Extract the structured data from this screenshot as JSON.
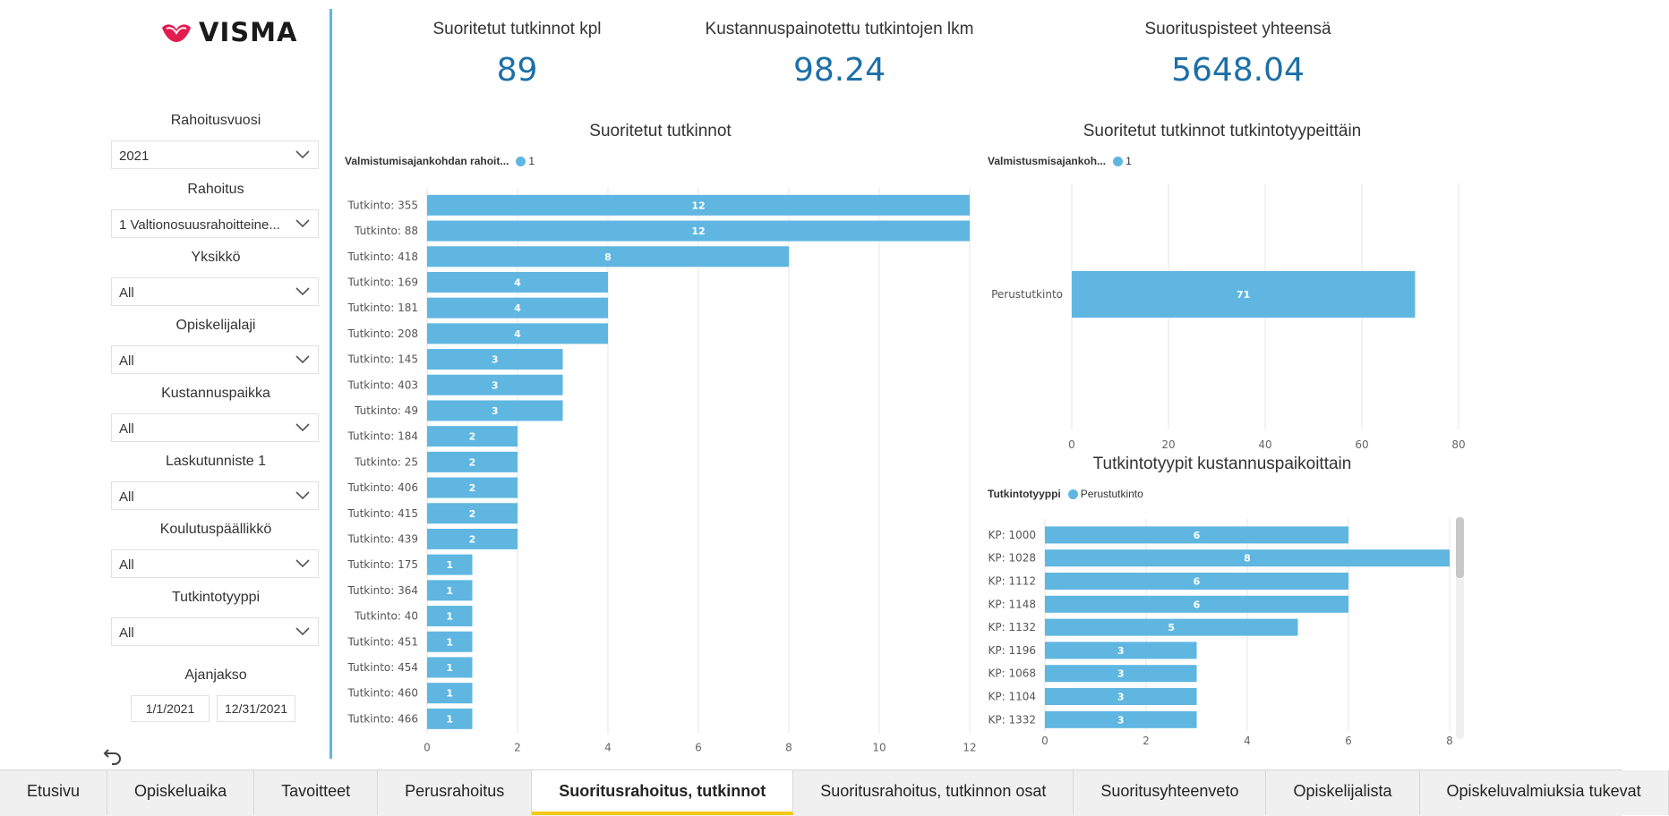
{
  "sidebar": {
    "logo_text": "VISMA",
    "slicers": [
      {
        "title": "Rahoitusvuosi",
        "value": "2021"
      },
      {
        "title": "Rahoitus",
        "value": "1 Valtionosuusrahoitteine..."
      },
      {
        "title": "Yksikkö",
        "value": "All"
      },
      {
        "title": "Opiskelijalaji",
        "value": "All"
      },
      {
        "title": "Kustannuspaikka",
        "value": "All"
      },
      {
        "title": "Laskutunniste 1",
        "value": "All"
      },
      {
        "title": "Koulutuspäällikkö",
        "value": "All"
      },
      {
        "title": "Tutkintotyyppi",
        "value": "All"
      }
    ],
    "period": {
      "title": "Ajanjakso",
      "start": "1/1/2021",
      "end": "12/31/2021"
    }
  },
  "kpis": [
    {
      "title": "Suoritetut tutkinnot kpl",
      "value": "89"
    },
    {
      "title": "Kustannuspainotettu tutkintojen lkm",
      "value": "98.24"
    },
    {
      "title": "Suorituspisteet yhteensä",
      "value": "5648.04"
    }
  ],
  "colors": {
    "bar": "#5fb6e1",
    "kpi": "#1c6fa8",
    "accent_tab": "#f2c811"
  },
  "chart_data": [
    {
      "type": "bar",
      "orientation": "horizontal",
      "title": "Suoritetut tutkinnot",
      "legend_title": "Valmistumisajankohdan rahoit...",
      "legend_item": "1",
      "categories": [
        "Tutkinto: 355",
        "Tutkinto: 88",
        "Tutkinto: 418",
        "Tutkinto: 169",
        "Tutkinto: 181",
        "Tutkinto: 208",
        "Tutkinto: 145",
        "Tutkinto: 403",
        "Tutkinto: 49",
        "Tutkinto: 184",
        "Tutkinto: 25",
        "Tutkinto: 406",
        "Tutkinto: 415",
        "Tutkinto: 439",
        "Tutkinto: 175",
        "Tutkinto: 364",
        "Tutkinto: 40",
        "Tutkinto: 451",
        "Tutkinto: 454",
        "Tutkinto: 460",
        "Tutkinto: 466"
      ],
      "values": [
        12,
        12,
        8,
        4,
        4,
        4,
        3,
        3,
        3,
        2,
        2,
        2,
        2,
        2,
        1,
        1,
        1,
        1,
        1,
        1,
        1
      ],
      "xlim": [
        0,
        12
      ],
      "xticks": [
        0,
        2,
        4,
        6,
        8,
        10,
        12
      ],
      "grid": true
    },
    {
      "type": "bar",
      "orientation": "horizontal",
      "title": "Suoritetut tutkinnot tutkintotyypeittäin",
      "legend_title": "Valmistusmisajankoh...",
      "legend_item": "1",
      "categories": [
        "Perustutkinto"
      ],
      "values": [
        71
      ],
      "xlim": [
        0,
        80
      ],
      "xticks": [
        0,
        20,
        40,
        60,
        80
      ],
      "grid": true
    },
    {
      "type": "bar",
      "orientation": "horizontal",
      "title": "Tutkintotyypit kustannuspaikoittain",
      "legend_title": "Tutkintotyyppi",
      "legend_item": "Perustutkinto",
      "categories": [
        "KP: 1000",
        "KP: 1028",
        "KP: 1112",
        "KP: 1148",
        "KP: 1132",
        "KP: 1196",
        "KP: 1068",
        "KP: 1104",
        "KP: 1332"
      ],
      "values": [
        6,
        8,
        6,
        6,
        5,
        3,
        3,
        3,
        3
      ],
      "xlim": [
        0,
        8
      ],
      "xticks": [
        0,
        2,
        4,
        6,
        8
      ],
      "grid": true
    }
  ],
  "tabs": [
    {
      "label": "Etusivu",
      "active": false
    },
    {
      "label": "Opiskeluaika",
      "active": false
    },
    {
      "label": "Tavoitteet",
      "active": false
    },
    {
      "label": "Perusrahoitus",
      "active": false
    },
    {
      "label": "Suoritusrahoitus, tutkinnot",
      "active": true
    },
    {
      "label": "Suoritusrahoitus, tutkinnon osat",
      "active": false
    },
    {
      "label": "Suoritusyhteenveto",
      "active": false
    },
    {
      "label": "Opiskelijalista",
      "active": false
    },
    {
      "label": "Opiskeluvalmiuksia tukevat",
      "active": false
    }
  ]
}
